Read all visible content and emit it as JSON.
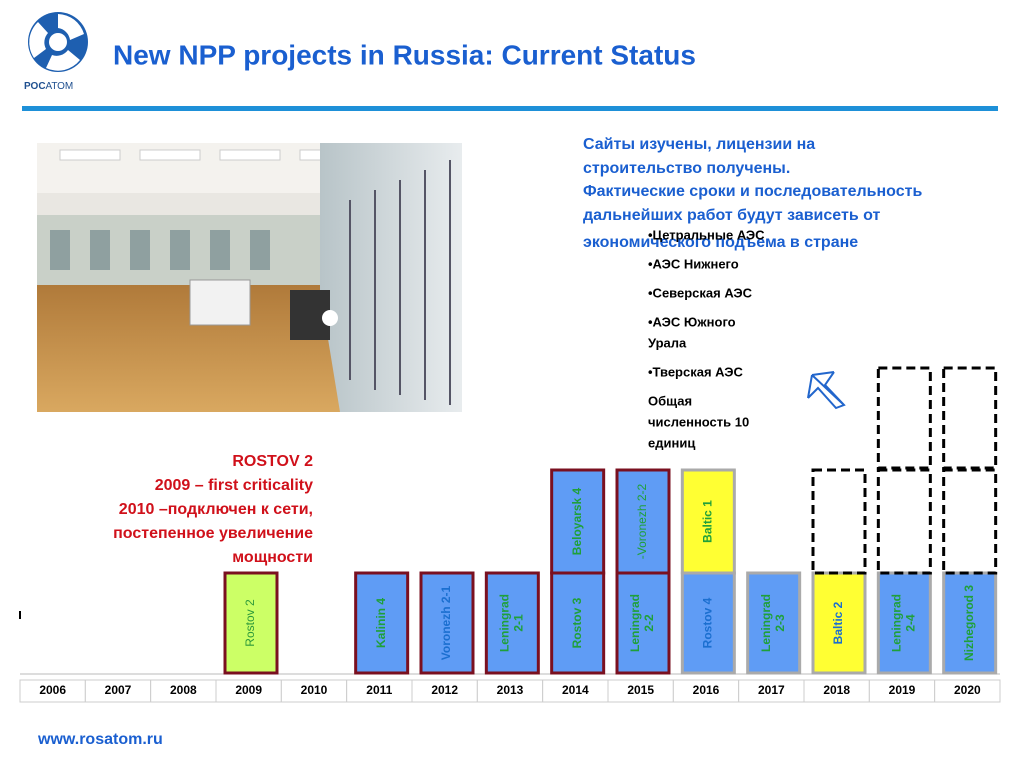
{
  "header": {
    "title": "New NPP projects in Russia: Current Status",
    "logo_bold": "РОС",
    "logo_light": "АТОМ"
  },
  "note": {
    "lines": [
      "Сайты изучены, лицензии на",
      "строительство получены.",
      "Фактические сроки и последовательность",
      "дальнейших работ будут зависеть от",
      "экономического подъема в стране"
    ]
  },
  "list": {
    "items": [
      [
        "•Цетральные АЭС"
      ],
      [
        "•АЭС Нижнего"
      ],
      [
        "•Северская АЭС"
      ],
      [
        "•АЭС Южного",
        "Урала"
      ],
      [
        "•Тверская АЭС"
      ],
      [
        "Общая",
        "численность 10",
        "единиц"
      ]
    ]
  },
  "callout": {
    "lines": [
      "ROSTOV 2",
      "2009 – first criticality",
      "2010 –подключен к сети,",
      "постепенное увеличение",
      "мощности"
    ]
  },
  "timeline": {
    "columns": [
      {
        "year": "2006",
        "units": []
      },
      {
        "year": "2007",
        "units": []
      },
      {
        "year": "2008",
        "units": []
      },
      {
        "year": "2009",
        "units": [
          {
            "lines": [
              "Rostov 2"
            ],
            "fill": "#ccff66",
            "border": "#7a1020",
            "text_color": "#2e9a3a",
            "bold": false
          }
        ]
      },
      {
        "year": "2010",
        "units": []
      },
      {
        "year": "2011",
        "units": [
          {
            "lines": [
              "Kalinin 4"
            ],
            "fill": "#5f9cf5",
            "border": "#7a1020",
            "text_color": "#1fa03a",
            "bold": true
          }
        ]
      },
      {
        "year": "2012",
        "units": [
          {
            "lines": [
              "Voronezh 2-1"
            ],
            "fill": "#5f9cf5",
            "border": "#7a1020",
            "text_color": "#1b6fd0",
            "bold": true
          }
        ]
      },
      {
        "year": "2013",
        "units": [
          {
            "lines": [
              "Leningrad",
              "2-1"
            ],
            "fill": "#5f9cf5",
            "border": "#7a1020",
            "text_color": "#1fa03a",
            "bold": true
          }
        ]
      },
      {
        "year": "2014",
        "units": [
          {
            "lines": [
              "Rostov 3"
            ],
            "fill": "#5f9cf5",
            "border": "#7a1020",
            "text_color": "#1fa03a",
            "bold": true
          },
          {
            "lines": [
              "Beloyarsk 4"
            ],
            "fill": "#5f9cf5",
            "border": "#7a1020",
            "text_color": "#1fa03a",
            "bold": true
          }
        ]
      },
      {
        "year": "2015",
        "units": [
          {
            "lines": [
              "Leningrad",
              "2-2"
            ],
            "fill": "#5f9cf5",
            "border": "#7a1020",
            "text_color": "#1fa03a",
            "bold": true
          },
          {
            "lines": [
              "-Voronezh 2-2"
            ],
            "fill": "#5f9cf5",
            "border": "#7a1020",
            "text_color": "#1fa03a",
            "bold": false
          }
        ]
      },
      {
        "year": "2016",
        "units": [
          {
            "lines": [
              "Rostov  4"
            ],
            "fill": "#5f9cf5",
            "border": "#aaaaaa",
            "text_color": "#1b6fd0",
            "bold": true
          },
          {
            "lines": [
              "Baltic 1"
            ],
            "fill": "#ffff33",
            "border": "#aaaaaa",
            "text_color": "#1fa03a",
            "bold": true
          }
        ]
      },
      {
        "year": "2017",
        "units": [
          {
            "lines": [
              "Leningrad",
              "2-3"
            ],
            "fill": "#5f9cf5",
            "border": "#aaaaaa",
            "text_color": "#1fa03a",
            "bold": true
          }
        ]
      },
      {
        "year": "2018",
        "units": [
          {
            "lines": [
              "Baltic 2"
            ],
            "fill": "#ffff33",
            "border": "#aaaaaa",
            "text_color": "#1b6fd0",
            "bold": true
          },
          {
            "fill": null,
            "dashed": true
          }
        ]
      },
      {
        "year": "2019",
        "units": [
          {
            "lines": [
              "Leningrad",
              "2-4"
            ],
            "fill": "#5f9cf5",
            "border": "#aaaaaa",
            "text_color": "#1fa03a",
            "bold": true
          },
          {
            "fill": null,
            "dashed": true
          },
          {
            "fill": null,
            "dashed": true
          }
        ]
      },
      {
        "year": "2020",
        "units": [
          {
            "lines": [
              "Nizhegorod 3"
            ],
            "fill": "#5f9cf5",
            "border": "#aaaaaa",
            "text_color": "#1fa03a",
            "bold": true
          },
          {
            "fill": null,
            "dashed": true
          },
          {
            "fill": null,
            "dashed": true
          }
        ]
      }
    ]
  },
  "footer": "www.rosatom.ru"
}
